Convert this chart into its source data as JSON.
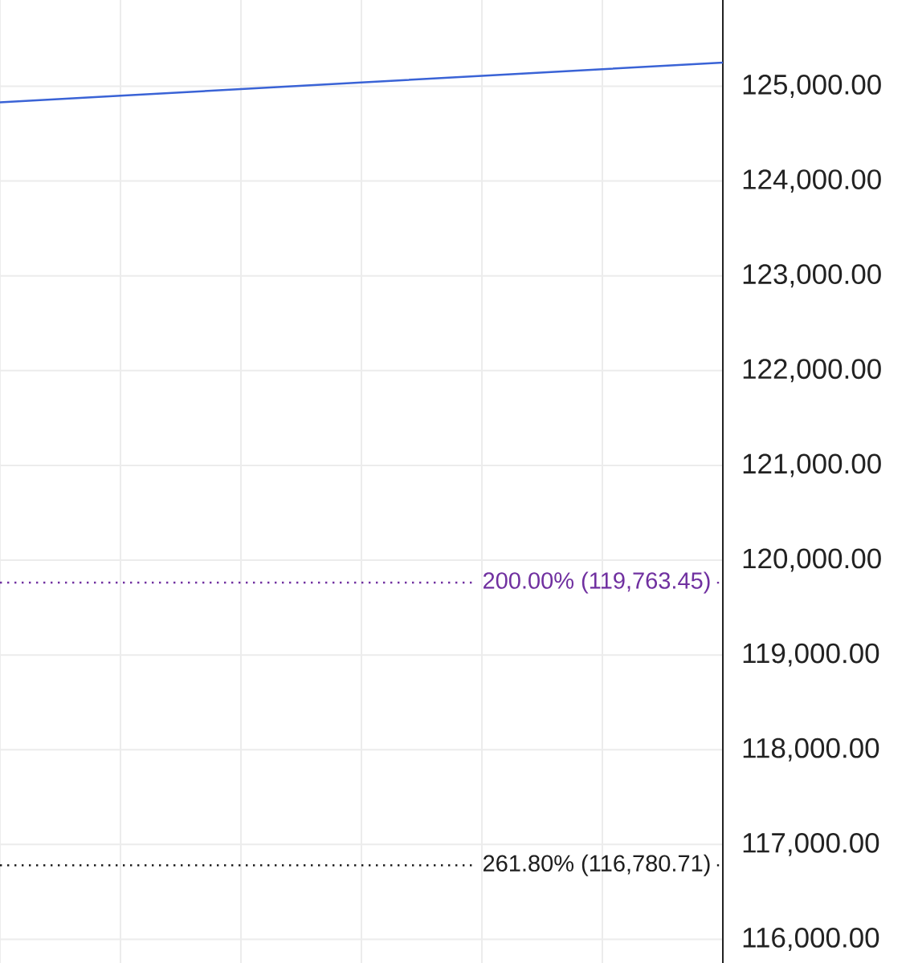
{
  "chart_data": {
    "type": "line",
    "categories": [
      null,
      null,
      null,
      null,
      null,
      null,
      null
    ],
    "series": [
      {
        "color": "#3a63d6",
        "values": [
          124830,
          124900,
          124970,
          125040,
          125110,
          125180,
          125250
        ]
      }
    ],
    "ylim": [
      115750,
      125910
    ],
    "yticks": [
      {
        "value": 116000,
        "label": "116,000.00"
      },
      {
        "value": 117000,
        "label": "117,000.00"
      },
      {
        "value": 118000,
        "label": "118,000.00"
      },
      {
        "value": 119000,
        "label": "119,000.00"
      },
      {
        "value": 120000,
        "label": "120,000.00"
      },
      {
        "value": 121000,
        "label": "121,000.00"
      },
      {
        "value": 122000,
        "label": "122,000.00"
      },
      {
        "value": 123000,
        "label": "123,000.00"
      },
      {
        "value": 124000,
        "label": "124,000.00"
      },
      {
        "value": 125000,
        "label": "125,000.00"
      }
    ],
    "grid": true,
    "tick_labels": "y",
    "ref_lines": [
      {
        "axis": "y",
        "value": 119763.45,
        "label": "200.00% (119,763.45)",
        "color": "#7030a0",
        "line_style": "dotted"
      },
      {
        "axis": "y",
        "value": 116780.71,
        "label": "261.80% (116,780.71)",
        "color": "#1e1e1e",
        "line_style": "dotted"
      }
    ]
  }
}
